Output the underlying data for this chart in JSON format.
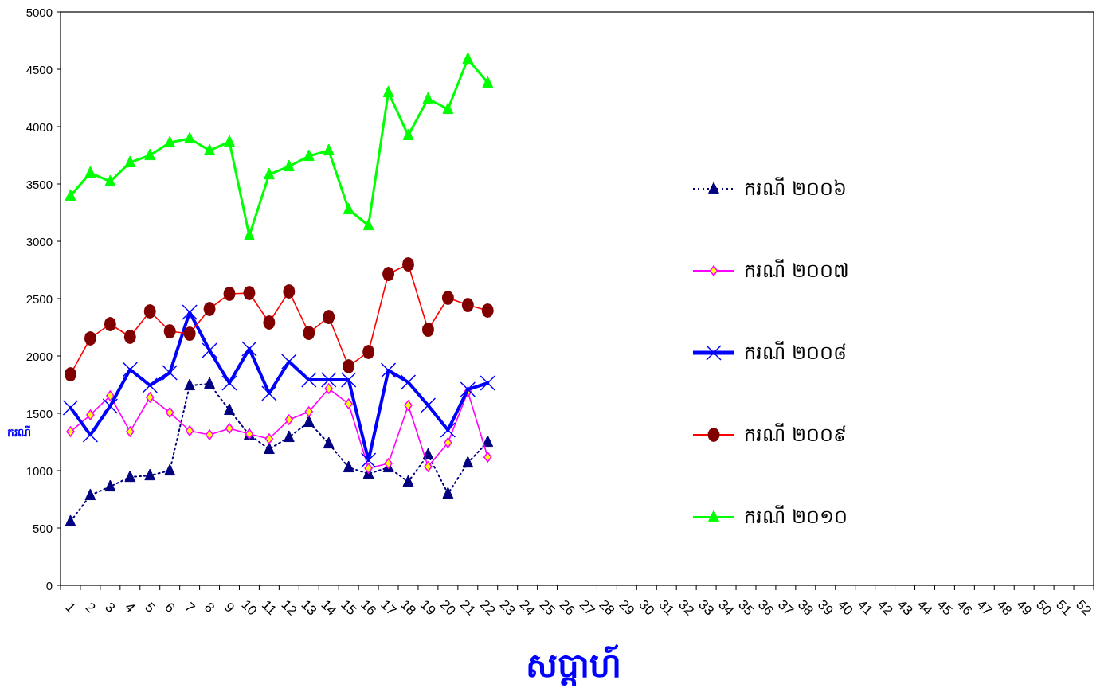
{
  "chart_data": {
    "type": "line",
    "xlabel": "សប្តាហ៍",
    "ylabel": "ករណី",
    "categories": [
      "1",
      "2",
      "3",
      "4",
      "5",
      "6",
      "7",
      "8",
      "9",
      "10",
      "11",
      "12",
      "13",
      "14",
      "15",
      "16",
      "17",
      "18",
      "19",
      "20",
      "21",
      "22",
      "23",
      "24",
      "25",
      "26",
      "27",
      "28",
      "29",
      "30",
      "31",
      "32",
      "33",
      "34",
      "35",
      "36",
      "37",
      "38",
      "39",
      "40",
      "41",
      "42",
      "43",
      "44",
      "45",
      "46",
      "47",
      "48",
      "49",
      "50",
      "51",
      "52"
    ],
    "ylim": [
      0,
      5000
    ],
    "yticks": [
      0,
      500,
      1000,
      1500,
      2000,
      2500,
      3000,
      3500,
      4000,
      4500,
      5000
    ],
    "grid": false,
    "legend": "right",
    "series": [
      {
        "name": "ករណី ២០០៦",
        "color": "#000080",
        "marker": "triangle",
        "line_style": "dotted",
        "values": [
          556,
          785,
          861,
          944,
          958,
          1000,
          1743,
          1757,
          1528,
          1312,
          1188,
          1292,
          1424,
          1236,
          1028,
          972,
          1028,
          903,
          1139,
          799,
          1069,
          1250,
          null,
          null,
          null,
          null,
          null,
          null,
          null,
          null,
          null,
          null,
          null,
          null,
          null,
          null,
          null,
          null,
          null,
          null,
          null,
          null,
          null,
          null,
          null,
          null,
          null,
          null,
          null,
          null,
          null,
          null
        ]
      },
      {
        "name": "ករណី ២០០៧",
        "color": "#ff00ff",
        "marker": "diamond",
        "line_style": "solid",
        "values": [
          1340,
          1486,
          1653,
          1340,
          1639,
          1507,
          1347,
          1312,
          1368,
          1319,
          1278,
          1444,
          1514,
          1715,
          1583,
          1021,
          1062,
          1569,
          1035,
          1243,
          1688,
          1118,
          null,
          null,
          null,
          null,
          null,
          null,
          null,
          null,
          null,
          null,
          null,
          null,
          null,
          null,
          null,
          null,
          null,
          null,
          null,
          null,
          null,
          null,
          null,
          null,
          null,
          null,
          null,
          null,
          null,
          null
        ]
      },
      {
        "name": "ករណី ២០០៨",
        "color": "#0000ff",
        "marker": "cross",
        "line_style": "solid",
        "values": [
          1549,
          1312,
          1563,
          1882,
          1743,
          1854,
          2382,
          2049,
          1764,
          2063,
          1674,
          1951,
          1792,
          1792,
          1792,
          1090,
          1875,
          1771,
          1569,
          1354,
          1708,
          1764,
          null,
          null,
          null,
          null,
          null,
          null,
          null,
          null,
          null,
          null,
          null,
          null,
          null,
          null,
          null,
          null,
          null,
          null,
          null,
          null,
          null,
          null,
          null,
          null,
          null,
          null,
          null,
          null,
          null,
          null
        ]
      },
      {
        "name": "ករណី ២០០៩",
        "color": "#ff0000",
        "marker": "circle",
        "line_style": "solid",
        "values": [
          1840,
          2153,
          2278,
          2167,
          2389,
          2215,
          2194,
          2410,
          2542,
          2549,
          2292,
          2563,
          2201,
          2340,
          1910,
          2035,
          2715,
          2799,
          2229,
          2507,
          2444,
          2396,
          null,
          null,
          null,
          null,
          null,
          null,
          null,
          null,
          null,
          null,
          null,
          null,
          null,
          null,
          null,
          null,
          null,
          null,
          null,
          null,
          null,
          null,
          null,
          null,
          null,
          null,
          null,
          null,
          null,
          null
        ]
      },
      {
        "name": "ករណី ២០១០",
        "color": "#00ff00",
        "marker": "triangle",
        "line_style": "solid",
        "values": [
          3396,
          3597,
          3521,
          3688,
          3750,
          3861,
          3896,
          3792,
          3868,
          3049,
          3583,
          3653,
          3743,
          3792,
          3278,
          3139,
          4299,
          3924,
          4243,
          4153,
          4590,
          4382,
          null,
          null,
          null,
          null,
          null,
          null,
          null,
          null,
          null,
          null,
          null,
          null,
          null,
          null,
          null,
          null,
          null,
          null,
          null,
          null,
          null,
          null,
          null,
          null,
          null,
          null,
          null,
          null,
          null,
          null
        ]
      }
    ]
  }
}
